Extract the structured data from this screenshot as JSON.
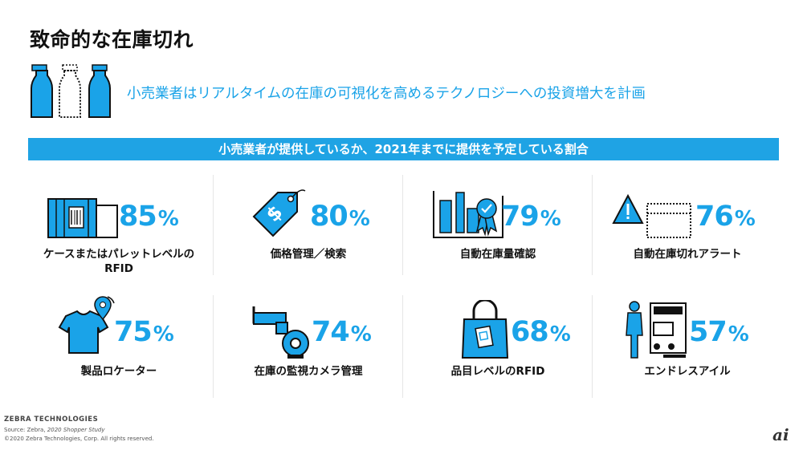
{
  "title": "致命的な在庫切れ",
  "subtitle": "小売業者はリアルタイムの在庫の可視化を高めるテクノロジーへの投資増大を計画",
  "banner": "小売業者が提供しているか、2021年までに提供を予定している割合",
  "colors": {
    "accent": "#1aa3e8",
    "banner": "#1fa3e4",
    "text": "#111111"
  },
  "stats": [
    {
      "value": "85",
      "unit": "%",
      "label_line1": "ケースまたはパレットレベルの",
      "label_line2": "RFID",
      "icon": "container-rfid-icon"
    },
    {
      "value": "80",
      "unit": "%",
      "label_line1": "価格管理／検索",
      "label_line2": "",
      "icon": "price-tag-icon"
    },
    {
      "value": "79",
      "unit": "%",
      "label_line1": "自動在庫量確認",
      "label_line2": "",
      "icon": "shelf-award-icon"
    },
    {
      "value": "76",
      "unit": "%",
      "label_line1": "自動在庫切れアラート",
      "label_line2": "",
      "icon": "alert-shelf-icon"
    },
    {
      "value": "75",
      "unit": "%",
      "label_line1": "製品ロケーター",
      "label_line2": "",
      "icon": "shirt-location-icon"
    },
    {
      "value": "74",
      "unit": "%",
      "label_line1": "在庫の監視カメラ管理",
      "label_line2": "",
      "icon": "security-camera-icon"
    },
    {
      "value": "68",
      "unit": "%",
      "label_line1": "品目レベルのRFID",
      "label_line2": "",
      "icon": "bag-tag-icon"
    },
    {
      "value": "57",
      "unit": "%",
      "label_line1": "エンドレスアイル",
      "label_line2": "",
      "icon": "shopper-kiosk-icon"
    }
  ],
  "footer": {
    "brand": "ZEBRA TECHNOLOGIES",
    "source_prefix": "Source: Zebra, ",
    "source_study": "2020 Shopper Study",
    "copyright": "©2020 Zebra Technologies, Corp. All rights reserved."
  },
  "logo_text": "ai"
}
